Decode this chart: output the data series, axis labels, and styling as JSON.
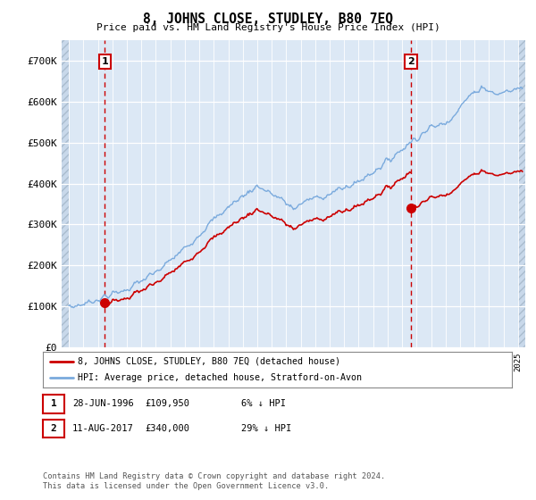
{
  "title": "8, JOHNS CLOSE, STUDLEY, B80 7EQ",
  "subtitle": "Price paid vs. HM Land Registry's House Price Index (HPI)",
  "ylim": [
    0,
    750000
  ],
  "yticks": [
    0,
    100000,
    200000,
    300000,
    400000,
    500000,
    600000,
    700000
  ],
  "ytick_labels": [
    "£0",
    "£100K",
    "£200K",
    "£300K",
    "£400K",
    "£500K",
    "£600K",
    "£700K"
  ],
  "hpi_color": "#7aaadd",
  "price_color": "#cc0000",
  "dashed_line_color": "#cc0000",
  "background_plot": "#dce8f5",
  "background_hatch_color": "#c8d8ea",
  "legend_label_price": "8, JOHNS CLOSE, STUDLEY, B80 7EQ (detached house)",
  "legend_label_hpi": "HPI: Average price, detached house, Stratford-on-Avon",
  "transaction1_date": "28-JUN-1996",
  "transaction1_price": "£109,950",
  "transaction1_pct": "6% ↓ HPI",
  "transaction2_date": "11-AUG-2017",
  "transaction2_price": "£340,000",
  "transaction2_pct": "29% ↓ HPI",
  "footer": "Contains HM Land Registry data © Crown copyright and database right 2024.\nThis data is licensed under the Open Government Licence v3.0.",
  "sale1_x": 1996.49,
  "sale1_y": 109950,
  "sale2_x": 2017.61,
  "sale2_y": 340000,
  "xmin": 1993.5,
  "xmax": 2025.5,
  "hatch_left_end": 1994.0,
  "hatch_right_start": 2025.0
}
